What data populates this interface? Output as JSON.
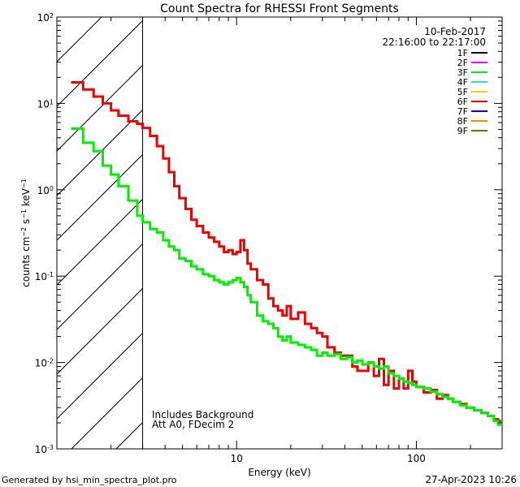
{
  "chart_data": {
    "type": "line",
    "title": "Count Spectra for RHESSI Front Segments",
    "xlabel": "Energy (keV)",
    "ylabel": "counts cm-2 s-1 keV-1",
    "xscale": "log",
    "yscale": "log",
    "xlim": [
      1,
      300
    ],
    "ylim": [
      0.001,
      100
    ],
    "x_ticks": [
      {
        "value": 10,
        "label": "10"
      },
      {
        "value": 100,
        "label": "100"
      }
    ],
    "y_ticks": [
      {
        "value": 0.001,
        "base": "10",
        "exp": "-3"
      },
      {
        "value": 0.01,
        "base": "10",
        "exp": "-2"
      },
      {
        "value": 0.1,
        "base": "10",
        "exp": "-1"
      },
      {
        "value": 1,
        "base": "10",
        "exp": "0"
      },
      {
        "value": 10,
        "base": "10",
        "exp": "1"
      },
      {
        "value": 100,
        "base": "10",
        "exp": "2"
      }
    ],
    "hatched_region": [
      1,
      3
    ],
    "cutoff_energy": 3,
    "date": "10-Feb-2017",
    "time_range": "22:16:00 to 22:17:00",
    "legend": [
      {
        "name": "1F",
        "color": "#000000"
      },
      {
        "name": "2F",
        "color": "#ff00ff"
      },
      {
        "name": "3F",
        "color": "#00ee00"
      },
      {
        "name": "4F",
        "color": "#33ddee"
      },
      {
        "name": "5F",
        "color": "#ffcc00"
      },
      {
        "name": "6F",
        "color": "#ee0000"
      },
      {
        "name": "7F",
        "color": "#0000cc"
      },
      {
        "name": "8F",
        "color": "#ff8800"
      },
      {
        "name": "9F",
        "color": "#886600"
      }
    ],
    "series": [
      {
        "name": "6F",
        "color": "#ee0000",
        "points": [
          [
            1.2,
            17.5
          ],
          [
            1.4,
            14.5
          ],
          [
            1.6,
            12
          ],
          [
            1.8,
            10
          ],
          [
            2.0,
            8.3
          ],
          [
            2.2,
            7.2
          ],
          [
            2.5,
            6.2
          ],
          [
            2.8,
            5.8
          ],
          [
            3.0,
            5.2
          ],
          [
            3.3,
            4.2
          ],
          [
            3.6,
            3.2
          ],
          [
            3.9,
            2.3
          ],
          [
            4.2,
            1.6
          ],
          [
            4.5,
            1.1
          ],
          [
            4.8,
            0.8
          ],
          [
            5.2,
            0.6
          ],
          [
            5.6,
            0.45
          ],
          [
            6.0,
            0.38
          ],
          [
            6.5,
            0.32
          ],
          [
            7.0,
            0.28
          ],
          [
            7.5,
            0.25
          ],
          [
            8.0,
            0.22
          ],
          [
            8.5,
            0.19
          ],
          [
            9.0,
            0.2
          ],
          [
            9.5,
            0.18
          ],
          [
            10.0,
            0.19
          ],
          [
            10.5,
            0.26
          ],
          [
            11.0,
            0.2
          ],
          [
            11.5,
            0.14
          ],
          [
            12,
            0.12
          ],
          [
            13,
            0.09
          ],
          [
            14,
            0.08
          ],
          [
            15,
            0.055
          ],
          [
            16,
            0.045
          ],
          [
            17,
            0.04
          ],
          [
            18,
            0.035
          ],
          [
            19,
            0.045
          ],
          [
            20,
            0.032
          ],
          [
            22,
            0.038
          ],
          [
            24,
            0.028
          ],
          [
            26,
            0.025
          ],
          [
            28,
            0.022
          ],
          [
            30,
            0.02
          ],
          [
            32,
            0.015
          ],
          [
            35,
            0.013
          ],
          [
            38,
            0.012
          ],
          [
            41,
            0.012
          ],
          [
            44,
            0.009
          ],
          [
            47,
            0.008
          ],
          [
            50,
            0.008
          ],
          [
            54,
            0.01
          ],
          [
            58,
            0.007
          ],
          [
            62,
            0.011
          ],
          [
            66,
            0.0055
          ],
          [
            70,
            0.008
          ],
          [
            75,
            0.005
          ],
          [
            80,
            0.0065
          ],
          [
            85,
            0.005
          ],
          [
            90,
            0.008
          ],
          [
            95,
            0.006
          ],
          [
            100,
            0.0052
          ],
          [
            110,
            0.0045
          ],
          [
            120,
            0.0048
          ],
          [
            130,
            0.0038
          ],
          [
            140,
            0.0042
          ],
          [
            150,
            0.0038
          ],
          [
            160,
            0.0035
          ],
          [
            175,
            0.0033
          ],
          [
            190,
            0.003
          ],
          [
            210,
            0.0028
          ],
          [
            230,
            0.0026
          ],
          [
            250,
            0.0024
          ],
          [
            270,
            0.0022
          ],
          [
            285,
            0.0021
          ]
        ]
      },
      {
        "name": "3F",
        "color": "#00ee00",
        "points": [
          [
            1.2,
            5.1
          ],
          [
            1.4,
            3.5
          ],
          [
            1.6,
            2.8
          ],
          [
            1.8,
            1.9
          ],
          [
            2.0,
            1.5
          ],
          [
            2.2,
            1.1
          ],
          [
            2.5,
            0.75
          ],
          [
            2.8,
            0.5
          ],
          [
            3.0,
            0.42
          ],
          [
            3.3,
            0.35
          ],
          [
            3.6,
            0.32
          ],
          [
            3.9,
            0.26
          ],
          [
            4.2,
            0.22
          ],
          [
            4.5,
            0.2
          ],
          [
            4.8,
            0.16
          ],
          [
            5.2,
            0.15
          ],
          [
            5.6,
            0.13
          ],
          [
            6.0,
            0.12
          ],
          [
            6.5,
            0.105
          ],
          [
            7.0,
            0.1
          ],
          [
            7.5,
            0.09
          ],
          [
            8.0,
            0.085
          ],
          [
            8.5,
            0.08
          ],
          [
            9.0,
            0.085
          ],
          [
            9.5,
            0.09
          ],
          [
            10.0,
            0.095
          ],
          [
            10.5,
            0.085
          ],
          [
            11.0,
            0.075
          ],
          [
            11.5,
            0.06
          ],
          [
            12,
            0.05
          ],
          [
            13,
            0.035
          ],
          [
            14,
            0.03
          ],
          [
            15,
            0.028
          ],
          [
            16,
            0.025
          ],
          [
            17,
            0.02
          ],
          [
            18,
            0.018
          ],
          [
            19,
            0.02
          ],
          [
            20,
            0.017
          ],
          [
            22,
            0.016
          ],
          [
            24,
            0.015
          ],
          [
            26,
            0.014
          ],
          [
            28,
            0.012
          ],
          [
            30,
            0.013
          ],
          [
            32,
            0.012
          ],
          [
            35,
            0.0125
          ],
          [
            38,
            0.011
          ],
          [
            41,
            0.0115
          ],
          [
            44,
            0.01
          ],
          [
            47,
            0.0105
          ],
          [
            50,
            0.0095
          ],
          [
            54,
            0.01
          ],
          [
            58,
            0.009
          ],
          [
            62,
            0.0085
          ],
          [
            66,
            0.009
          ],
          [
            70,
            0.0075
          ],
          [
            75,
            0.007
          ],
          [
            80,
            0.0065
          ],
          [
            85,
            0.006
          ],
          [
            90,
            0.0058
          ],
          [
            95,
            0.0055
          ],
          [
            100,
            0.0052
          ],
          [
            110,
            0.005
          ],
          [
            120,
            0.0046
          ],
          [
            130,
            0.0043
          ],
          [
            140,
            0.004
          ],
          [
            150,
            0.0038
          ],
          [
            160,
            0.0035
          ],
          [
            175,
            0.0032
          ],
          [
            190,
            0.003
          ],
          [
            210,
            0.0028
          ],
          [
            230,
            0.0026
          ],
          [
            250,
            0.0024
          ],
          [
            270,
            0.0021
          ],
          [
            285,
            0.0019
          ]
        ]
      }
    ],
    "annotations": [
      "Includes Background",
      "Att A0, FDecim 2"
    ]
  },
  "footer": {
    "left": "Generated by hsi_min_spectra_plot.pro",
    "right": "27-Apr-2023 10:26"
  }
}
